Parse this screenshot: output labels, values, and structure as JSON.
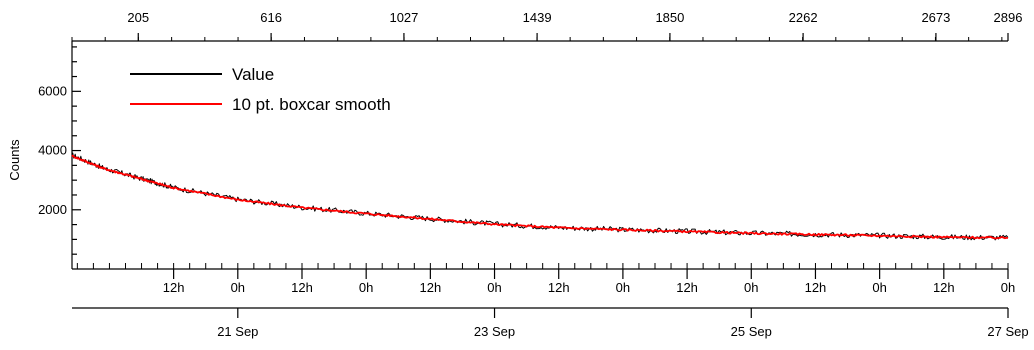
{
  "chart_data": {
    "type": "line",
    "title": "",
    "ylabel": "Counts",
    "ylim": [
      0,
      7700
    ],
    "y_ticks": [
      {
        "value": 2000,
        "label": "2000"
      },
      {
        "value": 4000,
        "label": "4000"
      },
      {
        "value": 6000,
        "label": "6000"
      }
    ],
    "x_time_range": [
      "2023-09-19T17:00",
      "2023-09-27T00:00"
    ],
    "x_hour_ticks": [
      {
        "t": "2023-09-20T12:00",
        "label": "12h"
      },
      {
        "t": "2023-09-21T00:00",
        "label": "0h"
      },
      {
        "t": "2023-09-21T12:00",
        "label": "12h"
      },
      {
        "t": "2023-09-22T00:00",
        "label": "0h"
      },
      {
        "t": "2023-09-22T12:00",
        "label": "12h"
      },
      {
        "t": "2023-09-23T00:00",
        "label": "0h"
      },
      {
        "t": "2023-09-23T12:00",
        "label": "12h"
      },
      {
        "t": "2023-09-24T00:00",
        "label": "0h"
      },
      {
        "t": "2023-09-24T12:00",
        "label": "12h"
      },
      {
        "t": "2023-09-25T00:00",
        "label": "0h"
      },
      {
        "t": "2023-09-25T12:00",
        "label": "12h"
      },
      {
        "t": "2023-09-26T00:00",
        "label": "0h"
      },
      {
        "t": "2023-09-26T12:00",
        "label": "12h"
      },
      {
        "t": "2023-09-27T00:00",
        "label": "0h"
      }
    ],
    "x_date_ticks": [
      {
        "t": "2023-09-21T00:00",
        "label": "21 Sep"
      },
      {
        "t": "2023-09-23T00:00",
        "label": "23 Sep"
      },
      {
        "t": "2023-09-25T00:00",
        "label": "25 Sep"
      },
      {
        "t": "2023-09-27T00:00",
        "label": "27 Sep"
      }
    ],
    "index_axis": {
      "range": [
        0,
        2896
      ],
      "ticks": [
        205,
        616,
        1027,
        1439,
        1850,
        2262,
        2673,
        2896
      ]
    },
    "legend": {
      "placement": "top-left",
      "entries": [
        {
          "name": "Value",
          "color": "#000000"
        },
        {
          "name": "10 pt. boxcar smooth",
          "color": "#ff0000"
        }
      ]
    },
    "series": [
      {
        "name": "Value",
        "color": "#000000",
        "x": [
          "2023-09-19T17:00",
          "2023-09-19T23:00",
          "2023-09-20T06:00",
          "2023-09-20T12:00",
          "2023-09-21T00:00",
          "2023-09-21T12:00",
          "2023-09-22T00:00",
          "2023-09-22T12:00",
          "2023-09-23T00:00",
          "2023-09-23T12:00",
          "2023-09-24T00:00",
          "2023-09-24T12:00",
          "2023-09-25T00:00",
          "2023-09-25T12:00",
          "2023-09-26T00:00",
          "2023-09-26T12:00",
          "2023-09-27T00:00"
        ],
        "y": [
          3850,
          3400,
          3050,
          2750,
          2350,
          2080,
          1880,
          1700,
          1520,
          1400,
          1330,
          1270,
          1210,
          1170,
          1130,
          1080,
          1060
        ]
      },
      {
        "name": "10 pt. boxcar smooth",
        "color": "#ff0000",
        "x": [
          "2023-09-19T17:00",
          "2023-09-19T23:00",
          "2023-09-20T06:00",
          "2023-09-20T12:00",
          "2023-09-21T00:00",
          "2023-09-21T12:00",
          "2023-09-22T00:00",
          "2023-09-22T12:00",
          "2023-09-23T00:00",
          "2023-09-23T12:00",
          "2023-09-24T00:00",
          "2023-09-24T12:00",
          "2023-09-25T00:00",
          "2023-09-25T12:00",
          "2023-09-26T00:00",
          "2023-09-26T12:00",
          "2023-09-27T00:00"
        ],
        "y": [
          3820,
          3390,
          3040,
          2740,
          2340,
          2070,
          1870,
          1690,
          1510,
          1395,
          1325,
          1265,
          1205,
          1165,
          1125,
          1075,
          1050
        ]
      }
    ],
    "grid": false
  }
}
